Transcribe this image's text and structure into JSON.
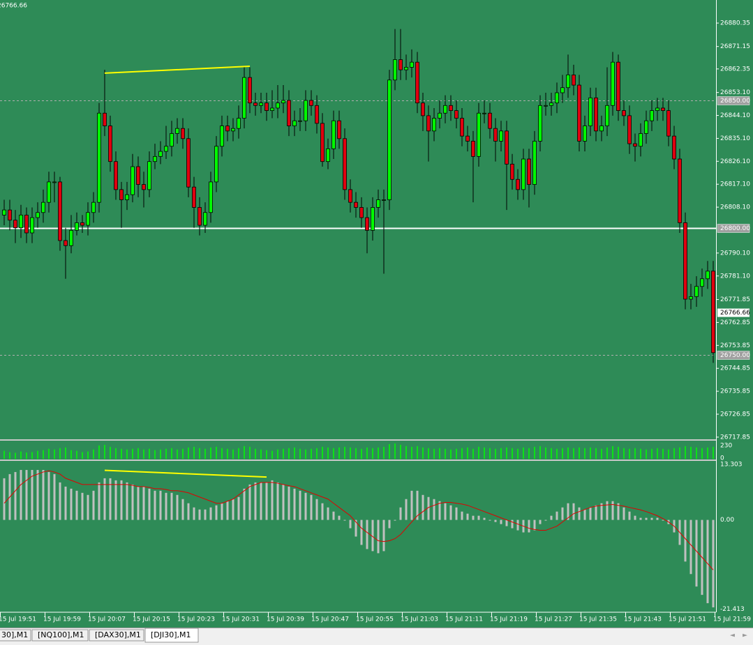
{
  "chart_data": {
    "type": "candlestick",
    "open": [
      26805,
      26807,
      26803,
      26800,
      26805,
      26798,
      26804,
      26806,
      26810,
      26818,
      26818,
      26795,
      26793,
      26799,
      26802,
      26801,
      26806,
      26810,
      26845,
      26840,
      26826,
      26815,
      26811,
      26813,
      26824,
      26817,
      26815,
      26826,
      26828,
      26830,
      26832,
      26837,
      26839,
      26835,
      26816,
      26808,
      26801,
      26806,
      26818,
      26832,
      26840,
      26838,
      26839,
      26843,
      26859,
      26849,
      26848,
      26849,
      26846,
      26847,
      26849,
      26850,
      26840,
      26842,
      26842,
      26850,
      26848,
      26841,
      26826,
      26831,
      26842,
      26835,
      26815,
      26810,
      26808,
      26804,
      26799,
      26808,
      26811,
      26811,
      26858,
      26866,
      26862,
      26863,
      26865,
      26849,
      26844,
      26838,
      26843,
      26845,
      26848,
      26846,
      26843,
      26836,
      26834,
      26828,
      26845,
      26845,
      26839,
      26834,
      26838,
      26825,
      26819,
      26815,
      26827,
      26817,
      26834,
      26848,
      26848,
      26849,
      26853,
      26855,
      26860,
      26856,
      26834,
      26840,
      26851,
      26838,
      26840,
      26848,
      26865,
      26846,
      26844,
      26833,
      26832,
      26837,
      26842,
      26846,
      26847,
      26846,
      26836,
      26827,
      26802,
      26772,
      26773,
      26777,
      26780,
      26783
    ],
    "high": [
      26811,
      26811,
      26807,
      26809,
      26808,
      26808,
      26810,
      26815,
      26822,
      26822,
      26820,
      26800,
      26805,
      26806,
      26805,
      26810,
      26814,
      26849,
      26862,
      26844,
      26830,
      26818,
      26818,
      26829,
      26828,
      26822,
      26830,
      26833,
      26834,
      26840,
      26842,
      26843,
      26843,
      26839,
      26820,
      26812,
      26810,
      26822,
      26836,
      26844,
      26844,
      26843,
      26848,
      26863,
      26863,
      26853,
      26853,
      26853,
      26854,
      26856,
      26856,
      26854,
      26846,
      26847,
      26854,
      26854,
      26852,
      26845,
      26835,
      26846,
      26846,
      26839,
      26819,
      26814,
      26812,
      26808,
      26812,
      26815,
      26815,
      26862,
      26878,
      26878,
      26868,
      26870,
      26869,
      26853,
      26848,
      26847,
      26850,
      26852,
      26852,
      26850,
      26847,
      26840,
      26838,
      26849,
      26850,
      26849,
      26843,
      26842,
      26842,
      26829,
      26823,
      26831,
      26831,
      26838,
      26852,
      26853,
      26853,
      26857,
      26860,
      26868,
      26864,
      26860,
      26844,
      26855,
      26855,
      26844,
      26863,
      26869,
      26868,
      26850,
      26848,
      26837,
      26841,
      26846,
      26850,
      26851,
      26851,
      26850,
      26840,
      26831,
      26806,
      26778,
      26781,
      26784,
      26787,
      26787
    ],
    "low": [
      26801,
      26799,
      26794,
      26796,
      26794,
      26794,
      26800,
      26802,
      26806,
      26810,
      26791,
      26780,
      26790,
      26797,
      26798,
      26797,
      26802,
      26806,
      26836,
      26822,
      26811,
      26800,
      26807,
      26810,
      26812,
      26808,
      26812,
      26823,
      26825,
      26827,
      26828,
      26833,
      26831,
      26812,
      26800,
      26797,
      26798,
      26802,
      26814,
      26828,
      26834,
      26834,
      26835,
      26839,
      26845,
      26844,
      26845,
      26842,
      26843,
      26843,
      26845,
      26836,
      26836,
      26838,
      26838,
      26844,
      26837,
      26824,
      26823,
      26827,
      26831,
      26811,
      26806,
      26804,
      26800,
      26790,
      26795,
      26804,
      26782,
      26807,
      26854,
      26858,
      26858,
      26859,
      26845,
      26838,
      26826,
      26834,
      26839,
      26841,
      26842,
      26839,
      26832,
      26830,
      26810,
      26824,
      26841,
      26835,
      26826,
      26830,
      26807,
      26815,
      26811,
      26811,
      26808,
      26813,
      26830,
      26844,
      26844,
      26845,
      26849,
      26851,
      26852,
      26830,
      26830,
      26836,
      26834,
      26834,
      26836,
      26844,
      26842,
      26840,
      26829,
      26826,
      26828,
      26833,
      26838,
      26842,
      26842,
      26832,
      26823,
      26798,
      26768,
      26768,
      26769,
      26773,
      26776,
      26747
    ],
    "close": [
      26807,
      26803,
      26800,
      26805,
      26798,
      26804,
      26806,
      26810,
      26818,
      26818,
      26795,
      26793,
      26799,
      26802,
      26801,
      26806,
      26810,
      26845,
      26840,
      26826,
      26815,
      26811,
      26813,
      26824,
      26817,
      26815,
      26826,
      26828,
      26830,
      26832,
      26837,
      26839,
      26835,
      26816,
      26808,
      26801,
      26806,
      26818,
      26832,
      26840,
      26838,
      26839,
      26843,
      26859,
      26849,
      26848,
      26849,
      26846,
      26847,
      26849,
      26850,
      26840,
      26842,
      26842,
      26850,
      26848,
      26841,
      26826,
      26831,
      26842,
      26835,
      26815,
      26810,
      26808,
      26804,
      26799,
      26808,
      26811,
      26811,
      26858,
      26866,
      26862,
      26863,
      26865,
      26849,
      26844,
      26838,
      26843,
      26845,
      26848,
      26846,
      26843,
      26836,
      26834,
      26828,
      26845,
      26845,
      26839,
      26834,
      26838,
      26825,
      26819,
      26815,
      26827,
      26817,
      26834,
      26848,
      26848,
      26849,
      26853,
      26855,
      26860,
      26856,
      26834,
      26840,
      26851,
      26838,
      26840,
      26848,
      26865,
      26846,
      26844,
      26833,
      26832,
      26837,
      26842,
      26846,
      26847,
      26846,
      26836,
      26827,
      26802,
      26772,
      26773,
      26777,
      26780,
      26783,
      26751
    ],
    "bull_color": "#00ff00",
    "bear_color": "#e0000f",
    "ylim": [
      26717.0,
      26889.4
    ],
    "yticks": [
      26880.35,
      26871.15,
      26862.35,
      {
        "value": 26853.1,
        "label": "26853.10"
      },
      {
        "value": 26844.1,
        "label": "26844.10"
      },
      {
        "value": 26835.1,
        "label": "26835.10"
      },
      {
        "value": 26826.1,
        "label": "26826.10"
      },
      {
        "value": 26817.1,
        "label": "26817.10"
      },
      {
        "value": 26808.1,
        "label": "26808.10"
      },
      {
        "value": 26790.1,
        "label": "26790.10"
      },
      {
        "value": 26781.1,
        "label": "26781.10"
      },
      26771.85,
      26762.85,
      26753.85,
      26744.85,
      26735.85,
      26726.85,
      26717.85
    ],
    "hlines": [
      {
        "value": 26850,
        "label": "26850.00",
        "style": "dashed"
      },
      {
        "value": 26800,
        "label": "26800.00",
        "style": "solid"
      },
      {
        "value": 26750,
        "label": "26750.00",
        "style": "dashed"
      }
    ],
    "price_label": {
      "value": 26766.66,
      "label": "26766.66"
    },
    "trendline": {
      "x1": 18,
      "y1": 26860.7,
      "x2": 44,
      "y2": 26863.4,
      "color": "#ffff00"
    },
    "time_labels": [
      "15 Jul 19:51",
      "15 Jul 19:59",
      "15 Jul 20:07",
      "15 Jul 20:15",
      "15 Jul 20:23",
      "15 Jul 20:31",
      "15 Jul 20:39",
      "15 Jul 20:47",
      "15 Jul 20:55",
      "15 Jul 21:03",
      "15 Jul 21:11",
      "15 Jul 21:19",
      "15 Jul 21:27",
      "15 Jul 21:35",
      "15 Jul 21:43",
      "15 Jul 21:51",
      "15 Jul 21:59"
    ],
    "volume": {
      "color": "#00ff00",
      "ylim": [
        0,
        230
      ],
      "yticks": [
        230,
        0
      ],
      "values": [
        120,
        100,
        90,
        110,
        95,
        100,
        120,
        130,
        150,
        140,
        160,
        170,
        130,
        120,
        100,
        110,
        140,
        200,
        210,
        180,
        160,
        150,
        140,
        150,
        160,
        140,
        150,
        130,
        140,
        150,
        160,
        140,
        150,
        170,
        180,
        160,
        150,
        170,
        180,
        160,
        150,
        140,
        160,
        190,
        180,
        150,
        140,
        130,
        120,
        140,
        150,
        160,
        170,
        150,
        140,
        150,
        160,
        180,
        170,
        160,
        170,
        180,
        170,
        160,
        150,
        170,
        160,
        170,
        180,
        220,
        230,
        210,
        190,
        180,
        190,
        170,
        160,
        150,
        160,
        150,
        140,
        150,
        160,
        170,
        150,
        180,
        170,
        160,
        150,
        160,
        170,
        160,
        150,
        170,
        160,
        180,
        190,
        170,
        160,
        150,
        160,
        170,
        160,
        170,
        160,
        170,
        160,
        150,
        170,
        190,
        180,
        160,
        150,
        160,
        150,
        140,
        150,
        160,
        150,
        140,
        160,
        170,
        190,
        180,
        170,
        160,
        170,
        180
      ]
    },
    "macd": {
      "histogram_color": "#c0c0c0",
      "signal_color": "#e00000",
      "ylim": [
        -22,
        14
      ],
      "yticks": [
        13.303,
        {
          "value": 0,
          "label": "0.00"
        },
        -21.413
      ],
      "histogram": [
        10,
        11,
        11.5,
        12,
        12,
        12,
        12,
        12,
        11.5,
        11,
        9,
        8,
        7.5,
        7,
        6.5,
        6,
        7,
        9,
        10,
        10,
        9.5,
        9.5,
        9,
        8.5,
        8,
        8,
        7.5,
        7,
        7,
        6.5,
        6.5,
        6,
        5,
        4,
        3,
        2.5,
        2.5,
        3,
        3.5,
        4,
        4.5,
        5,
        5.5,
        7.5,
        8.5,
        9,
        9,
        9,
        9.5,
        9,
        8.5,
        8,
        7.5,
        7,
        6.5,
        6,
        5,
        4,
        3,
        2,
        1,
        0,
        -2,
        -4,
        -6,
        -7,
        -7.5,
        -8,
        -7.5,
        -2,
        0,
        3,
        5,
        7,
        7,
        6,
        5.5,
        5,
        4.5,
        4,
        3.5,
        3,
        2,
        1.5,
        1,
        1,
        0.5,
        0,
        -0.5,
        -1,
        -1.5,
        -2,
        -2.5,
        -3,
        -3,
        -2.5,
        -1,
        0,
        1,
        2,
        3,
        4,
        4,
        3,
        2.5,
        3,
        3.5,
        4,
        4.5,
        4.5,
        4,
        3,
        2,
        1,
        0.5,
        0.5,
        0.5,
        0.5,
        0,
        -1,
        -3,
        -6,
        -10,
        -13,
        -16,
        -18,
        -20,
        -21
      ],
      "signal": [
        4,
        5.5,
        7,
        8.5,
        9.5,
        10.5,
        11,
        11.5,
        11.8,
        11.5,
        11,
        10,
        9.5,
        9,
        8.5,
        8.5,
        8.5,
        8.5,
        8.5,
        8.5,
        8.5,
        8.5,
        8.5,
        8.3,
        8,
        8,
        7.8,
        7.5,
        7.5,
        7.3,
        7,
        7,
        6.8,
        6.5,
        6,
        5.5,
        5,
        4.5,
        4,
        4,
        4.5,
        5,
        6,
        7,
        8,
        8.5,
        9,
        9,
        9,
        8.8,
        8.5,
        8.2,
        8,
        7.5,
        7,
        6.5,
        6,
        5.5,
        5,
        4,
        3,
        2,
        1,
        -0.5,
        -2,
        -3,
        -4,
        -5,
        -5.2,
        -5,
        -4.5,
        -3.5,
        -2,
        -0.5,
        1,
        2,
        3,
        3.5,
        4,
        4.2,
        4.2,
        4,
        3.8,
        3.5,
        3,
        2.5,
        2,
        1.5,
        1,
        0.5,
        0,
        -0.5,
        -1,
        -1.5,
        -2,
        -2.3,
        -2.5,
        -2.5,
        -2,
        -1.5,
        -0.5,
        0.5,
        1.5,
        2,
        2.5,
        3,
        3.3,
        3.5,
        3.6,
        3.7,
        3.5,
        3.3,
        3,
        2.7,
        2.4,
        2,
        1.5,
        1,
        0.3,
        -0.5,
        -1.5,
        -3,
        -4.5,
        -6,
        -7.5,
        -9,
        -10.5,
        -12
      ],
      "trendline": {
        "x1": 18,
        "y1": 11.9,
        "x2": 47,
        "y2": 10.3,
        "color": "#ffff00"
      }
    }
  },
  "tabs": [
    "30],M1",
    "[NQ100],M1",
    "[DAX30],M1",
    "[DJI30],M1"
  ],
  "active_tab": 3
}
